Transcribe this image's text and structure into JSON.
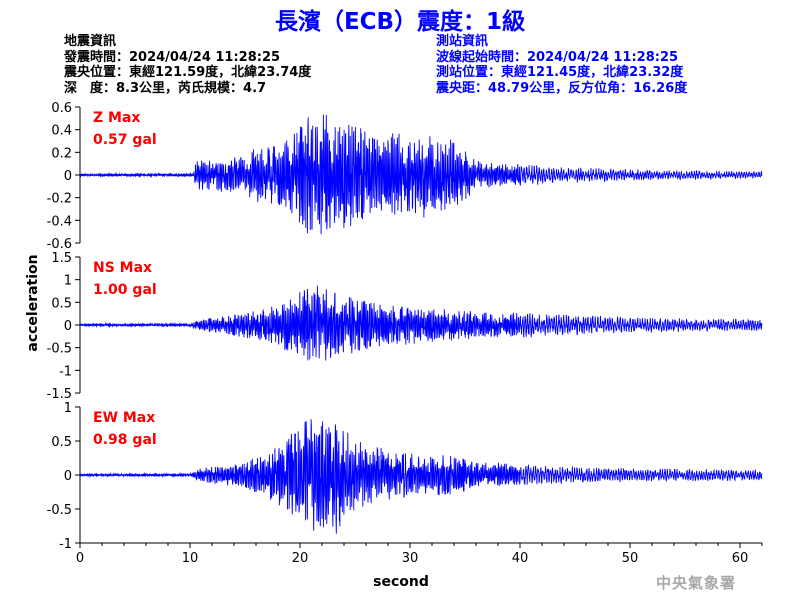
{
  "title": "長濱（ECB）震度：1級",
  "earthquake_info": {
    "heading": "地震資訊",
    "origin_time": "發震時間：2024/04/24 11:28:25",
    "epicenter": "震央位置：東經121.59度，北緯23.74度",
    "depth_magnitude": "深　度：8.3公里，芮氏規模：4.7"
  },
  "station_info": {
    "heading": "測站資訊",
    "wave_start": "波線起始時間：2024/04/24 11:28:25",
    "location": "測站位置：東經121.45度，北緯23.32度",
    "distance": "震央距：48.79公里，反方位角：16.26度"
  },
  "watermark": "中央氣象署",
  "colors": {
    "title": "#0000ff",
    "trace": "#0000ff",
    "max_label": "#ff0000",
    "station_text": "#0000ff",
    "watermark": "#a9a9a9"
  },
  "chart_data": {
    "type": "line",
    "xlabel": "second",
    "ylabel": "acceleration",
    "xlim": [
      0,
      62
    ],
    "xticks": [
      0,
      10,
      20,
      30,
      40,
      50,
      60
    ],
    "grid": false,
    "panels": [
      {
        "name": "Z",
        "max_label": "Z Max",
        "max_value": "0.57 gal",
        "ylim": [
          -0.6,
          0.6
        ],
        "yticks": [
          0.6,
          0.4,
          0.2,
          0,
          -0.2,
          -0.4,
          -0.6
        ],
        "ytick_labels": [
          "0.6",
          "0.4",
          "0.2",
          "0",
          "-0.2",
          "-0.4",
          "-0.6"
        ],
        "peak": 0.57,
        "envelope": [
          [
            0,
            0.012
          ],
          [
            10.3,
            0.015
          ],
          [
            10.6,
            0.14
          ],
          [
            12,
            0.13
          ],
          [
            14,
            0.17
          ],
          [
            16,
            0.24
          ],
          [
            18,
            0.28
          ],
          [
            19.5,
            0.38
          ],
          [
            20.5,
            0.52
          ],
          [
            22,
            0.57
          ],
          [
            23,
            0.5
          ],
          [
            25,
            0.44
          ],
          [
            27,
            0.34
          ],
          [
            29,
            0.4
          ],
          [
            31,
            0.38
          ],
          [
            33,
            0.34
          ],
          [
            34.5,
            0.28
          ],
          [
            36,
            0.14
          ],
          [
            38,
            0.11
          ],
          [
            40,
            0.1
          ],
          [
            44,
            0.07
          ],
          [
            48,
            0.06
          ],
          [
            52,
            0.045
          ],
          [
            56,
            0.04
          ],
          [
            62,
            0.03
          ]
        ]
      },
      {
        "name": "NS",
        "max_label": "NS Max",
        "max_value": "1.00 gal",
        "ylim": [
          -1.5,
          1.5
        ],
        "yticks": [
          1.5,
          1,
          0.5,
          0,
          -0.5,
          -1,
          -1.5
        ],
        "ytick_labels": [
          "1.5",
          "1",
          "0.5",
          "0",
          "-0.5",
          "-1",
          "-1.5"
        ],
        "peak": 1.0,
        "envelope": [
          [
            0,
            0.03
          ],
          [
            10,
            0.04
          ],
          [
            11,
            0.12
          ],
          [
            13,
            0.2
          ],
          [
            15,
            0.28
          ],
          [
            17,
            0.38
          ],
          [
            19,
            0.6
          ],
          [
            20.5,
            0.85
          ],
          [
            21.5,
            1.0
          ],
          [
            23,
            0.8
          ],
          [
            25,
            0.6
          ],
          [
            27,
            0.52
          ],
          [
            29,
            0.46
          ],
          [
            32,
            0.38
          ],
          [
            36,
            0.3
          ],
          [
            40,
            0.28
          ],
          [
            44,
            0.24
          ],
          [
            48,
            0.2
          ],
          [
            52,
            0.17
          ],
          [
            56,
            0.15
          ],
          [
            62,
            0.13
          ]
        ]
      },
      {
        "name": "EW",
        "max_label": "EW Max",
        "max_value": "0.98 gal",
        "ylim": [
          -1,
          1
        ],
        "yticks": [
          1,
          0.5,
          0,
          -0.5,
          -1
        ],
        "ytick_labels": [
          "1",
          "0.5",
          "0",
          "-0.5",
          "-1"
        ],
        "peak": 0.98,
        "envelope": [
          [
            0,
            0.02
          ],
          [
            10,
            0.025
          ],
          [
            11,
            0.1
          ],
          [
            13,
            0.15
          ],
          [
            15,
            0.2
          ],
          [
            17,
            0.32
          ],
          [
            19,
            0.6
          ],
          [
            20.5,
            0.8
          ],
          [
            22,
            0.95
          ],
          [
            23,
            0.98
          ],
          [
            24.5,
            0.6
          ],
          [
            26,
            0.45
          ],
          [
            28,
            0.38
          ],
          [
            30,
            0.32
          ],
          [
            32,
            0.3
          ],
          [
            34,
            0.28
          ],
          [
            36,
            0.2
          ],
          [
            40,
            0.16
          ],
          [
            44,
            0.13
          ],
          [
            48,
            0.11
          ],
          [
            52,
            0.1
          ],
          [
            56,
            0.09
          ],
          [
            62,
            0.08
          ]
        ]
      }
    ]
  }
}
